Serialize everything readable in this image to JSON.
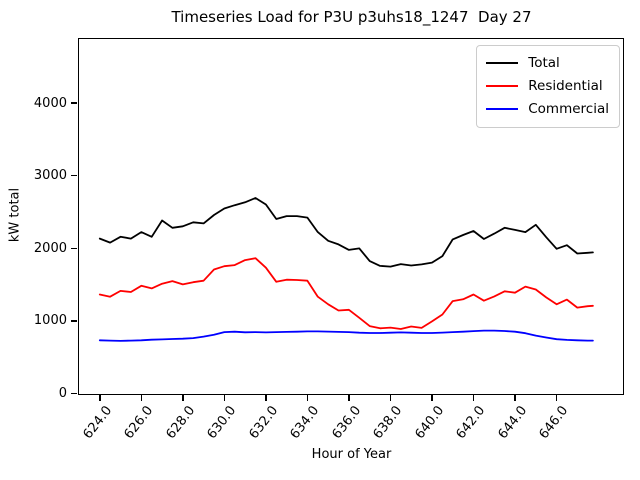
{
  "chart_data": {
    "type": "line",
    "title": "Timeseries Load for P3U p3uhs18_1247  Day 27",
    "xlabel": "Hour of Year",
    "ylabel": "kW total",
    "xlim": [
      623.0,
      649.2
    ],
    "ylim": [
      0,
      4890
    ],
    "grid": false,
    "legend_position": "upper right",
    "xticks": [
      624,
      626,
      628,
      630,
      632,
      634,
      636,
      638,
      640,
      642,
      644,
      646
    ],
    "xtick_labels": [
      "624.0",
      "626.0",
      "628.0",
      "630.0",
      "632.0",
      "634.0",
      "636.0",
      "638.0",
      "640.0",
      "642.0",
      "644.0",
      "646.0"
    ],
    "yticks": [
      0,
      1000,
      2000,
      3000,
      4000
    ],
    "ytick_labels": [
      "0",
      "1000",
      "2000",
      "3000",
      "4000"
    ],
    "x": [
      624,
      624.5,
      625,
      625.5,
      626,
      626.5,
      627,
      627.5,
      628,
      628.5,
      629,
      629.5,
      630,
      630.5,
      631,
      631.5,
      632,
      632.5,
      633,
      633.5,
      634,
      634.5,
      635,
      635.5,
      636,
      636.5,
      637,
      637.5,
      638,
      638.5,
      639,
      639.5,
      640,
      640.5,
      641,
      641.5,
      642,
      642.5,
      643,
      643.5,
      644,
      644.5,
      645,
      645.5,
      646,
      646.5,
      647,
      647.5,
      647.75
    ],
    "series": [
      {
        "name": "Total",
        "color": "#000000",
        "values": [
          2140,
          2085,
          2165,
          2140,
          2230,
          2165,
          2390,
          2290,
          2310,
          2365,
          2350,
          2465,
          2555,
          2600,
          2640,
          2700,
          2610,
          2410,
          2450,
          2450,
          2430,
          2230,
          2110,
          2060,
          1985,
          2005,
          1830,
          1765,
          1755,
          1790,
          1770,
          1785,
          1810,
          1900,
          2130,
          2190,
          2245,
          2135,
          2210,
          2290,
          2260,
          2230,
          2330,
          2160,
          2000,
          2050,
          1935,
          1945,
          1950
        ]
      },
      {
        "name": "Residential",
        "color": "#ff0000",
        "values": [
          1370,
          1340,
          1420,
          1405,
          1490,
          1455,
          1520,
          1555,
          1510,
          1540,
          1560,
          1715,
          1760,
          1775,
          1845,
          1870,
          1740,
          1545,
          1575,
          1570,
          1560,
          1340,
          1235,
          1150,
          1160,
          1050,
          935,
          905,
          915,
          895,
          930,
          910,
          1000,
          1095,
          1280,
          1305,
          1370,
          1285,
          1345,
          1415,
          1395,
          1480,
          1440,
          1330,
          1235,
          1300,
          1190,
          1210,
          1215
        ]
      },
      {
        "name": "Commercial",
        "color": "#0000ff",
        "values": [
          740,
          735,
          732,
          735,
          740,
          748,
          752,
          758,
          762,
          770,
          790,
          815,
          852,
          858,
          850,
          852,
          848,
          852,
          856,
          858,
          862,
          862,
          860,
          856,
          852,
          845,
          840,
          840,
          845,
          848,
          844,
          840,
          840,
          846,
          852,
          858,
          866,
          874,
          874,
          868,
          858,
          838,
          805,
          778,
          755,
          745,
          740,
          736,
          735
        ]
      }
    ]
  }
}
